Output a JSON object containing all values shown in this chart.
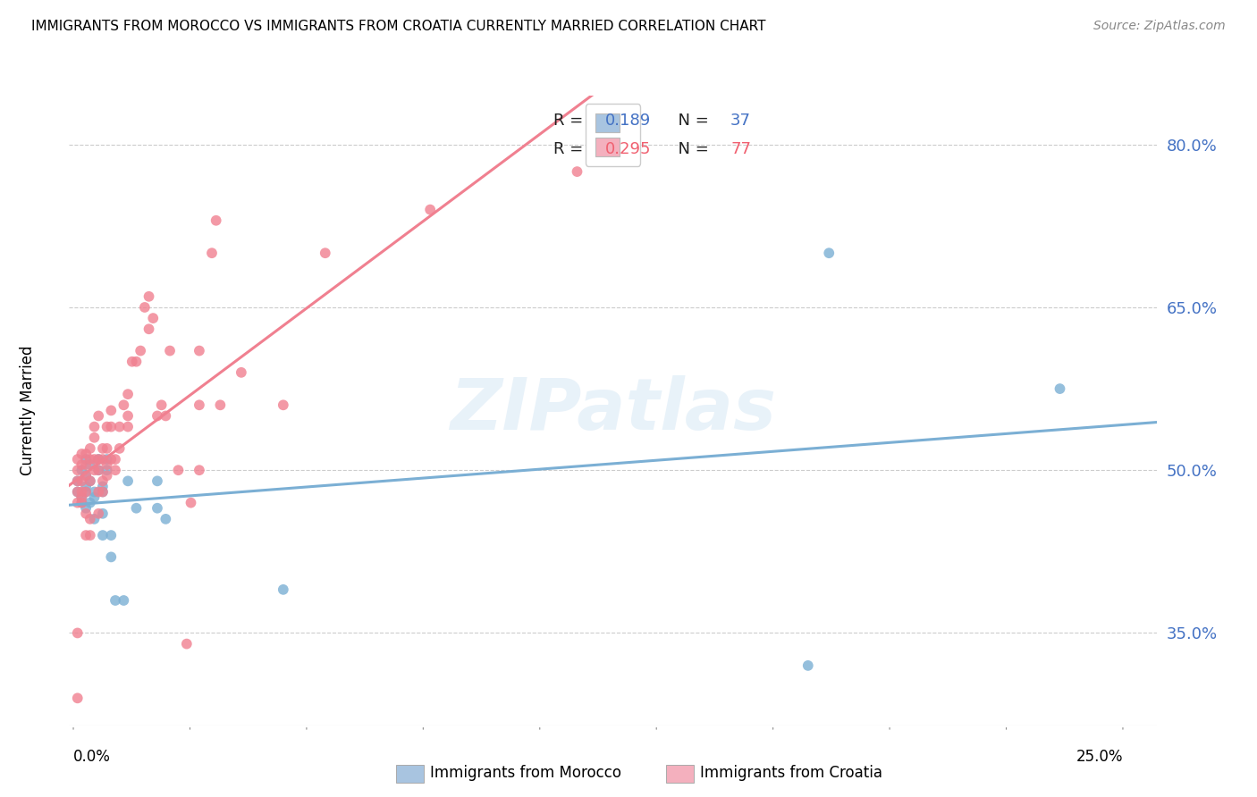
{
  "title": "IMMIGRANTS FROM MOROCCO VS IMMIGRANTS FROM CROATIA CURRENTLY MARRIED CORRELATION CHART",
  "source": "Source: ZipAtlas.com",
  "ylabel": "Currently Married",
  "y_ticks": [
    0.35,
    0.5,
    0.65,
    0.8
  ],
  "y_tick_labels": [
    "35.0%",
    "50.0%",
    "65.0%",
    "80.0%"
  ],
  "y_axis_min": 0.265,
  "y_axis_max": 0.845,
  "x_axis_min": -0.001,
  "x_axis_max": 0.258,
  "r1": "0.189",
  "n1": "37",
  "r2": "0.295",
  "n2": "77",
  "color_morocco": "#7bafd4",
  "color_croatia": "#f08090",
  "legend_patch_morocco": "#a8c4e0",
  "legend_patch_croatia": "#f4b0be",
  "watermark": "ZIPatlas",
  "morocco_x": [
    0.001,
    0.001,
    0.002,
    0.002,
    0.002,
    0.003,
    0.003,
    0.003,
    0.003,
    0.003,
    0.004,
    0.004,
    0.004,
    0.005,
    0.005,
    0.005,
    0.006,
    0.006,
    0.007,
    0.007,
    0.007,
    0.007,
    0.008,
    0.008,
    0.009,
    0.009,
    0.01,
    0.012,
    0.013,
    0.015,
    0.02,
    0.02,
    0.022,
    0.05,
    0.175,
    0.18,
    0.235
  ],
  "morocco_y": [
    0.48,
    0.49,
    0.475,
    0.47,
    0.5,
    0.48,
    0.495,
    0.465,
    0.485,
    0.51,
    0.47,
    0.505,
    0.49,
    0.48,
    0.455,
    0.475,
    0.5,
    0.51,
    0.48,
    0.46,
    0.485,
    0.44,
    0.5,
    0.51,
    0.44,
    0.42,
    0.38,
    0.38,
    0.49,
    0.465,
    0.49,
    0.465,
    0.455,
    0.39,
    0.32,
    0.7,
    0.575
  ],
  "croatia_x": [
    0.001,
    0.001,
    0.001,
    0.001,
    0.001,
    0.001,
    0.001,
    0.002,
    0.002,
    0.002,
    0.002,
    0.002,
    0.002,
    0.003,
    0.003,
    0.003,
    0.003,
    0.003,
    0.003,
    0.004,
    0.004,
    0.004,
    0.004,
    0.004,
    0.005,
    0.005,
    0.005,
    0.005,
    0.006,
    0.006,
    0.006,
    0.006,
    0.006,
    0.007,
    0.007,
    0.007,
    0.007,
    0.008,
    0.008,
    0.008,
    0.008,
    0.009,
    0.009,
    0.009,
    0.01,
    0.01,
    0.011,
    0.011,
    0.012,
    0.013,
    0.013,
    0.013,
    0.014,
    0.015,
    0.016,
    0.017,
    0.018,
    0.018,
    0.019,
    0.02,
    0.021,
    0.022,
    0.023,
    0.025,
    0.027,
    0.028,
    0.03,
    0.03,
    0.033,
    0.034,
    0.03,
    0.035,
    0.04,
    0.05,
    0.06,
    0.085,
    0.12
  ],
  "croatia_y": [
    0.29,
    0.47,
    0.48,
    0.49,
    0.5,
    0.51,
    0.35,
    0.47,
    0.475,
    0.48,
    0.49,
    0.505,
    0.515,
    0.48,
    0.495,
    0.505,
    0.515,
    0.44,
    0.46,
    0.49,
    0.51,
    0.52,
    0.455,
    0.44,
    0.5,
    0.51,
    0.53,
    0.54,
    0.5,
    0.51,
    0.48,
    0.46,
    0.55,
    0.51,
    0.52,
    0.49,
    0.48,
    0.52,
    0.54,
    0.505,
    0.495,
    0.51,
    0.54,
    0.555,
    0.51,
    0.5,
    0.52,
    0.54,
    0.56,
    0.57,
    0.54,
    0.55,
    0.6,
    0.6,
    0.61,
    0.65,
    0.66,
    0.63,
    0.64,
    0.55,
    0.56,
    0.55,
    0.61,
    0.5,
    0.34,
    0.47,
    0.61,
    0.5,
    0.7,
    0.73,
    0.56,
    0.56,
    0.59,
    0.56,
    0.7,
    0.74,
    0.775
  ]
}
